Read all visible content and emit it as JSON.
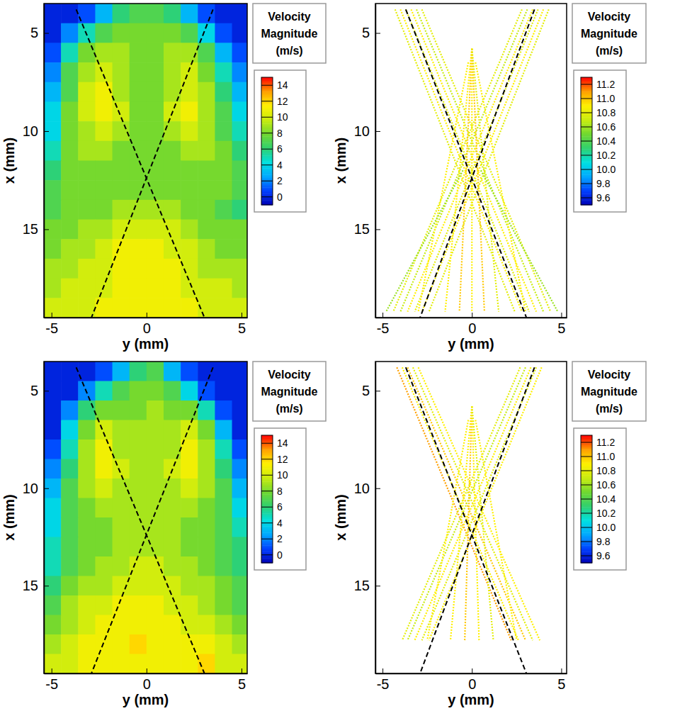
{
  "chart_data": [
    {
      "type": "heatmap",
      "xlabel": "y (mm)",
      "ylabel": "x (mm)",
      "xlim": [
        -5.4,
        5.3
      ],
      "xticks": [
        -5,
        0,
        5
      ],
      "ylim": [
        19.5,
        3.5
      ],
      "yticks": [
        5,
        10,
        15
      ],
      "cols": [
        -4.95,
        -4.05,
        -3.15,
        -2.25,
        -1.35,
        -0.45,
        0.45,
        1.35,
        2.25,
        3.15,
        4.05,
        4.95
      ],
      "rows": [
        4,
        5,
        6,
        7,
        8,
        9,
        10,
        11,
        12,
        13,
        14,
        15,
        16,
        17,
        18,
        19
      ],
      "values": [
        [
          0,
          0,
          1,
          3,
          6,
          7,
          7,
          6,
          3,
          1,
          0,
          0
        ],
        [
          0,
          2,
          5,
          7,
          8,
          8,
          8,
          8,
          7,
          4,
          1,
          0
        ],
        [
          1,
          5,
          8,
          9,
          9,
          8,
          8,
          9,
          9,
          7,
          3,
          1
        ],
        [
          2,
          7,
          9,
          10,
          9,
          8,
          8,
          9,
          10,
          8,
          5,
          2
        ],
        [
          3,
          7,
          10,
          11,
          9,
          8,
          8,
          9,
          10,
          9,
          6,
          3
        ],
        [
          4,
          8,
          10,
          11,
          10,
          8,
          8,
          10,
          11,
          9,
          7,
          4
        ],
        [
          4,
          8,
          9,
          10,
          9,
          8,
          8,
          9,
          10,
          9,
          7,
          5
        ],
        [
          5,
          8,
          9,
          9,
          8,
          8,
          8,
          8,
          9,
          9,
          8,
          6
        ],
        [
          6,
          8,
          8,
          8,
          8,
          8,
          8,
          8,
          8,
          8,
          8,
          7
        ],
        [
          7,
          8,
          8,
          8,
          8,
          8,
          8,
          8,
          8,
          8,
          8,
          7
        ],
        [
          7,
          8,
          8,
          8,
          9,
          9,
          9,
          9,
          8,
          8,
          7,
          6
        ],
        [
          8,
          8,
          9,
          9,
          10,
          10,
          10,
          10,
          9,
          8,
          8,
          8
        ],
        [
          8,
          9,
          9,
          10,
          11,
          11,
          11,
          10,
          10,
          9,
          8,
          8
        ],
        [
          9,
          9,
          10,
          10,
          11,
          11,
          11,
          11,
          10,
          9,
          9,
          9
        ],
        [
          9,
          10,
          10,
          10,
          11,
          11,
          11,
          11,
          10,
          10,
          10,
          9
        ],
        [
          10,
          10,
          10,
          11,
          11,
          11,
          11,
          11,
          11,
          10,
          10,
          10
        ]
      ],
      "lines": [
        {
          "h": [
            -3.7,
            3.05
          ],
          "v": [
            3.8,
            19.5
          ],
          "line_style": "dashed",
          "color": "#000000"
        },
        {
          "h": [
            3.5,
            -2.9
          ],
          "v": [
            3.8,
            19.5
          ],
          "line_style": "dashed",
          "color": "#000000"
        }
      ],
      "colorbar": {
        "title": "Velocity Magnitude (m/s)",
        "range": [
          -1,
          15
        ],
        "ticks": [
          0,
          2,
          4,
          6,
          8,
          10,
          12,
          14
        ]
      }
    },
    {
      "type": "tracks",
      "xlabel": "y (mm)",
      "ylabel": "x (mm)",
      "xlim": [
        -5.4,
        5.3
      ],
      "xticks": [
        -5,
        0,
        5
      ],
      "ylim": [
        19.5,
        3.5
      ],
      "yticks": [
        5,
        10,
        15
      ],
      "tracks": [
        [
          -4.3,
          3.8,
          2.4,
          19.2,
          10.8
        ],
        [
          -4.0,
          3.8,
          2.8,
          19.2,
          10.9
        ],
        [
          -3.7,
          3.8,
          3.2,
          19.2,
          10.8
        ],
        [
          -3.4,
          3.8,
          3.6,
          19.2,
          10.9
        ],
        [
          -3.1,
          3.8,
          4.0,
          19.2,
          10.7
        ],
        [
          -2.8,
          3.8,
          4.4,
          19.2,
          10.8
        ],
        [
          4.3,
          3.8,
          -2.4,
          19.2,
          10.8
        ],
        [
          4.0,
          3.8,
          -2.8,
          19.2,
          10.9
        ],
        [
          3.7,
          3.8,
          -3.2,
          19.2,
          10.8
        ],
        [
          3.4,
          3.8,
          -3.6,
          19.2,
          10.9
        ],
        [
          3.1,
          3.8,
          -4.0,
          19.2,
          10.7
        ],
        [
          2.8,
          3.8,
          -4.4,
          19.2,
          10.8
        ],
        [
          0,
          5.8,
          -1.5,
          19.2,
          10.9
        ],
        [
          0,
          5.8,
          -0.7,
          19.2,
          11.0
        ],
        [
          0,
          5.8,
          0,
          19.2,
          10.9
        ],
        [
          0,
          5.8,
          0.7,
          19.2,
          11.0
        ],
        [
          0,
          5.8,
          1.5,
          19.2,
          10.8
        ],
        [
          -0.2,
          6.5,
          -3.0,
          19.2,
          10.9
        ],
        [
          0.2,
          6.5,
          3.0,
          19.2,
          10.9
        ],
        [
          0.5,
          12,
          4.8,
          19.2,
          10.6
        ],
        [
          -0.5,
          12,
          -4.8,
          19.2,
          10.6
        ]
      ],
      "lines": [
        {
          "h": [
            -3.7,
            3.05
          ],
          "v": [
            3.8,
            19.5
          ],
          "line_style": "dashed",
          "color": "#000000"
        },
        {
          "h": [
            3.5,
            -2.9
          ],
          "v": [
            3.8,
            19.5
          ],
          "line_style": "dashed",
          "color": "#000000"
        }
      ],
      "colorbar": {
        "title": "Velocity Magnitude (m/s)",
        "range": [
          9.5,
          11.3
        ],
        "ticks": [
          9.6,
          9.8,
          {
            "value": 10,
            "label": "10.0"
          },
          10.2,
          10.4,
          10.6,
          10.8,
          {
            "value": 11,
            "label": "11.0"
          },
          11.2
        ]
      }
    },
    {
      "type": "heatmap",
      "xlabel": "y (mm)",
      "ylabel": "x (mm)",
      "xlim": [
        -5.4,
        5.3
      ],
      "xticks": [
        -5,
        0,
        5
      ],
      "ylim": [
        19.5,
        3.5
      ],
      "yticks": [
        5,
        10,
        15
      ],
      "cols": [
        -4.95,
        -4.05,
        -3.15,
        -2.25,
        -1.35,
        -0.45,
        0.45,
        1.35,
        2.25,
        3.15,
        4.05,
        4.95
      ],
      "rows": [
        4,
        5,
        6,
        7,
        8,
        9,
        10,
        11,
        12,
        13,
        14,
        15,
        16,
        17,
        18,
        19
      ],
      "values": [
        [
          0,
          0,
          0,
          1,
          3,
          6,
          7,
          3,
          1,
          0,
          0,
          0
        ],
        [
          0,
          0,
          2,
          5,
          7,
          8,
          8,
          7,
          4,
          1,
          0,
          0
        ],
        [
          0,
          2,
          6,
          8,
          8,
          8,
          9,
          8,
          8,
          5,
          1,
          0
        ],
        [
          0,
          4,
          8,
          10,
          9,
          9,
          9,
          9,
          10,
          8,
          3,
          0
        ],
        [
          1,
          5,
          9,
          11,
          9,
          9,
          9,
          9,
          11,
          9,
          5,
          1
        ],
        [
          2,
          6,
          9,
          11,
          10,
          9,
          9,
          10,
          11,
          9,
          6,
          2
        ],
        [
          3,
          7,
          9,
          10,
          9,
          9,
          9,
          9,
          10,
          9,
          7,
          3
        ],
        [
          4,
          7,
          8,
          9,
          9,
          9,
          9,
          9,
          9,
          8,
          7,
          4
        ],
        [
          4,
          7,
          8,
          8,
          9,
          9,
          9,
          9,
          8,
          8,
          7,
          5
        ],
        [
          5,
          7,
          8,
          8,
          9,
          9,
          9,
          9,
          8,
          8,
          7,
          6
        ],
        [
          5,
          7,
          8,
          9,
          9,
          10,
          10,
          9,
          9,
          8,
          7,
          6
        ],
        [
          6,
          8,
          9,
          9,
          10,
          10,
          10,
          10,
          9,
          9,
          8,
          7
        ],
        [
          7,
          9,
          10,
          10,
          11,
          11,
          11,
          10,
          10,
          9,
          8,
          7
        ],
        [
          8,
          9,
          10,
          11,
          11,
          11,
          11,
          11,
          10,
          10,
          9,
          8
        ],
        [
          9,
          10,
          11,
          11,
          11,
          12,
          11,
          11,
          11,
          11,
          10,
          9
        ],
        [
          10,
          10,
          11,
          11,
          11,
          11,
          11,
          11,
          11,
          12,
          10,
          10
        ]
      ],
      "lines": [
        {
          "h": [
            -3.7,
            3.05
          ],
          "v": [
            3.8,
            19.5
          ],
          "line_style": "dashed",
          "color": "#000000"
        },
        {
          "h": [
            3.5,
            -2.9
          ],
          "v": [
            3.8,
            19.5
          ],
          "line_style": "dashed",
          "color": "#000000"
        }
      ],
      "colorbar": {
        "title": "Velocity Magnitude (m/s)",
        "range": [
          -1,
          15
        ],
        "ticks": [
          0,
          2,
          4,
          6,
          8,
          10,
          12,
          14
        ]
      }
    },
    {
      "type": "tracks",
      "xlabel": "y (mm)",
      "ylabel": "x (mm)",
      "xlim": [
        -5.4,
        5.3
      ],
      "xticks": [
        -5,
        0,
        5
      ],
      "ylim": [
        19.5,
        3.5
      ],
      "yticks": [
        5,
        10,
        15
      ],
      "tracks": [
        [
          -4.2,
          3.8,
          2.2,
          17.8,
          11.1
        ],
        [
          -3.9,
          3.8,
          2.6,
          17.8,
          10.9
        ],
        [
          -3.6,
          3.8,
          3.0,
          17.8,
          11.0
        ],
        [
          -3.3,
          3.8,
          3.4,
          17.8,
          10.8
        ],
        [
          -3.0,
          3.8,
          3.8,
          17.8,
          10.9
        ],
        [
          3.9,
          3.8,
          -2.4,
          17.8,
          10.9
        ],
        [
          3.6,
          3.8,
          -2.8,
          17.8,
          10.8
        ],
        [
          3.3,
          3.8,
          -3.2,
          17.8,
          10.9
        ],
        [
          3.0,
          3.8,
          -3.6,
          17.8,
          10.7
        ],
        [
          2.7,
          3.8,
          -3.9,
          17.8,
          10.8
        ],
        [
          0,
          5.8,
          -1.2,
          17.8,
          10.9
        ],
        [
          0,
          5.8,
          -0.4,
          17.8,
          11.0
        ],
        [
          0,
          5.8,
          0.4,
          17.8,
          10.9
        ],
        [
          0,
          5.8,
          1.2,
          17.8,
          10.8
        ],
        [
          -0.2,
          6.5,
          -2.5,
          17.8,
          10.9
        ],
        [
          0.2,
          6.5,
          2.5,
          17.8,
          10.9
        ]
      ],
      "lines": [
        {
          "h": [
            -3.7,
            3.05
          ],
          "v": [
            3.8,
            19.5
          ],
          "line_style": "dashed",
          "color": "#000000"
        },
        {
          "h": [
            3.5,
            -2.9
          ],
          "v": [
            3.8,
            19.5
          ],
          "line_style": "dashed",
          "color": "#000000"
        }
      ],
      "colorbar": {
        "title": "Velocity Magnitude (m/s)",
        "range": [
          9.5,
          11.3
        ],
        "ticks": [
          9.6,
          9.8,
          {
            "value": 10,
            "label": "10.0"
          },
          10.2,
          10.4,
          10.6,
          10.8,
          {
            "value": 11,
            "label": "11.0"
          },
          11.2
        ]
      }
    }
  ]
}
